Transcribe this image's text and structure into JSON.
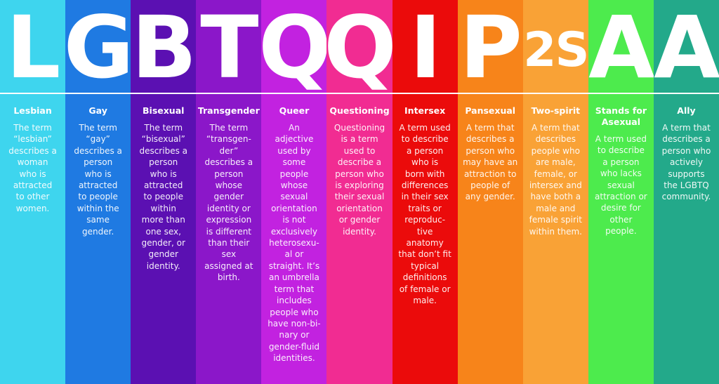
{
  "columns": [
    {
      "letter": "L",
      "title": "Lesbian",
      "color": "#3ed5ee",
      "text": "The term\n“lesbian”\ndescribes a\nwoman\nwho is\nattracted\nto other\nwomen."
    },
    {
      "letter": "G",
      "title": "Gay",
      "color": "#1f7ae2",
      "text": "The term\n“gay”\ndescribes a\nperson\nwho is\nattracted\nto people\nwithin the\nsame\ngender."
    },
    {
      "letter": "B",
      "title": "Bisexual",
      "color": "#5b10b2",
      "text": "The term\n“bisexual”\ndescribes a\nperson\nwho is\nattracted\nto people\nwithin\nmore than\none sex,\ngender, or\ngender\nidentity."
    },
    {
      "letter": "T",
      "title": "Transgender",
      "color": "#8b17c9",
      "text": "The term\n“transgen-\nder”\ndescribes a\nperson\nwhose\ngender\nidentity or\nexpression\nis different\nthan their\nsex\nassigned at\nbirth."
    },
    {
      "letter": "Q",
      "title": "Queer",
      "color": "#c222e0",
      "text": "An\nadjective\nused by\nsome\npeople\nwhose\nsexual\norientation\nis not\nexclusively\nheterosexu-\nal or\nstraight. It’s\nan umbrella\nterm that\nincludes\npeople who\nhave non-bi-\nnary or\ngender-fluid\nidentities."
    },
    {
      "letter": "Q",
      "title": "Questioning",
      "color": "#f12c92",
      "text": "Questioning\nis a term\nused to\ndescribe a\nperson who\nis exploring\ntheir sexual\norientation\nor gender\nidentity."
    },
    {
      "letter": "I",
      "title": "Intersex",
      "color": "#eb0b0b",
      "text": "A term used\nto describe\na person\nwho is\nborn with\ndifferences\nin their sex\ntraits or\nreproduc-\ntive\nanatomy\nthat don’t fit\ntypical\ndefinitions\nof female or\nmale."
    },
    {
      "letter": "P",
      "title": "Pansexual",
      "color": "#f7841a",
      "text": "A term that\ndescribes a\nperson who\nmay have an\nattraction to\npeople of\nany gender."
    },
    {
      "letter": "2S",
      "title": "Two-spirit",
      "color": "#f9a236",
      "text": "A term that\ndescribes\npeople who\nare male,\nfemale, or\nintersex and\nhave both a\nmale and\nfemale spirit\nwithin them."
    },
    {
      "letter": "A",
      "title": "Stands for\nAsexual",
      "color": "#4deb4d",
      "text": "A term used\nto describe\na person\nwho lacks\nsexual\nattraction or\ndesire for\nother\npeople."
    },
    {
      "letter": "A",
      "title": "Ally",
      "color": "#23a98a",
      "text": "A term that\ndescribes a\nperson who\nactively\nsupports\nthe LGBTQ\ncommunity."
    }
  ]
}
